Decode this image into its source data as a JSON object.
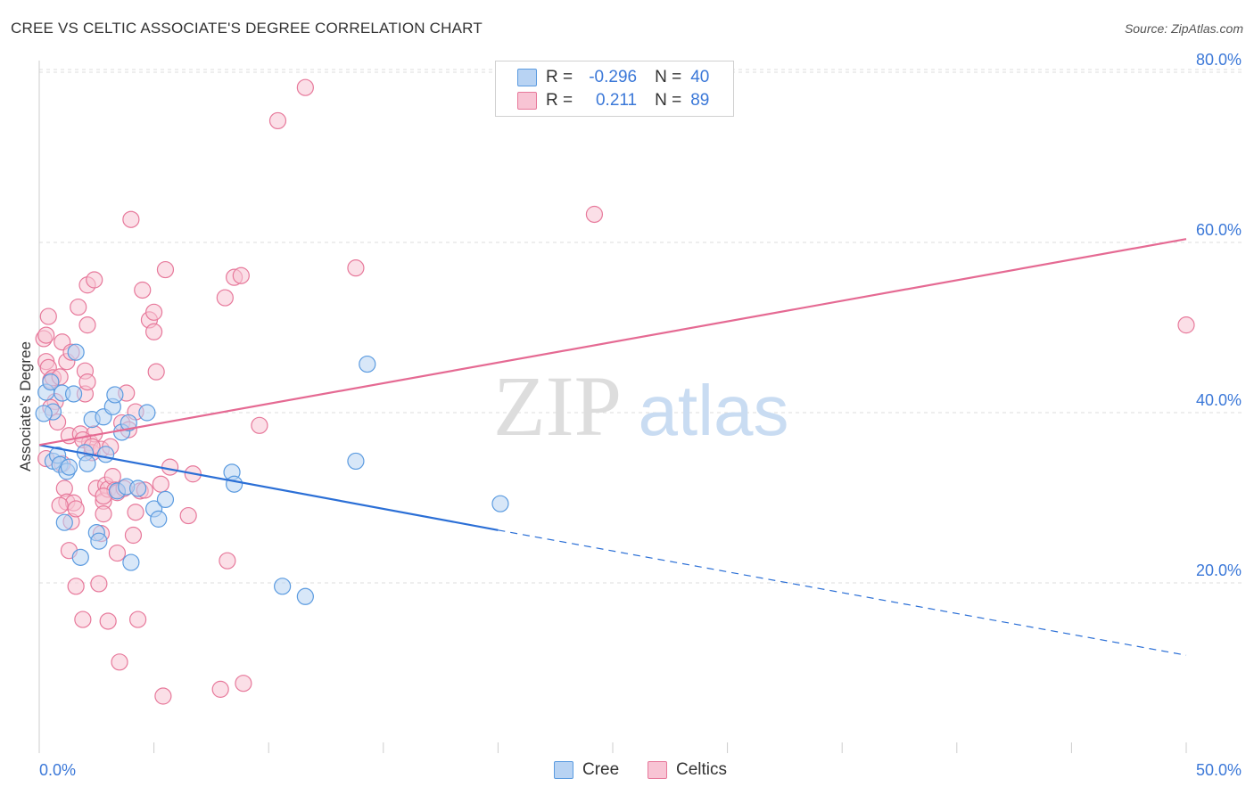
{
  "header": {
    "title": "CREE VS CELTIC ASSOCIATE'S DEGREE CORRELATION CHART",
    "source": "Source: ZipAtlas.com"
  },
  "watermark": {
    "zip": "ZIP",
    "atlas": "atlas"
  },
  "legend": {
    "cree": {
      "r_label": "R =",
      "r_value": "-0.296",
      "n_label": "N =",
      "n_value": "40"
    },
    "celtics": {
      "r_label": "R =",
      "r_value": "0.211",
      "n_label": "N =",
      "n_value": "89"
    }
  },
  "bottom_legend": {
    "cree": "Cree",
    "celtics": "Celtics"
  },
  "chart_data": {
    "type": "scatter",
    "title": "CREE VS CELTIC ASSOCIATE'S DEGREE CORRELATION CHART",
    "xlabel": "",
    "ylabel": "Associate's Degree",
    "xlim": [
      0,
      50
    ],
    "ylim": [
      0,
      82
    ],
    "x_tick_labels": [
      "0.0%",
      "50.0%"
    ],
    "y_ticks": [
      20,
      40,
      60,
      80
    ],
    "y_tick_labels": [
      "20.0%",
      "40.0%",
      "60.0%",
      "80.0%"
    ],
    "grid": true,
    "legend_position": "top-center",
    "colors": {
      "cree": "#5b9be0",
      "cree_fill": "#b8d3f3",
      "cree_line": "#2b6fd6",
      "celtics": "#e7799b",
      "celtics_fill": "#f8c4d4",
      "celtics_line": "#e56a93",
      "axis_label": "#3b78d8"
    },
    "series": [
      {
        "name": "Cree",
        "points": [
          [
            0.3,
            42.4
          ],
          [
            0.5,
            43.6
          ],
          [
            0.6,
            40.1
          ],
          [
            0.6,
            34.3
          ],
          [
            0.8,
            35.0
          ],
          [
            0.9,
            33.9
          ],
          [
            1.0,
            42.3
          ],
          [
            1.1,
            27.1
          ],
          [
            1.2,
            33.1
          ],
          [
            1.3,
            33.6
          ],
          [
            1.5,
            42.2
          ],
          [
            1.6,
            47.1
          ],
          [
            1.8,
            23.0
          ],
          [
            2.0,
            35.3
          ],
          [
            2.1,
            34.0
          ],
          [
            2.3,
            39.2
          ],
          [
            2.5,
            25.9
          ],
          [
            2.6,
            24.9
          ],
          [
            2.8,
            39.5
          ],
          [
            2.9,
            35.1
          ],
          [
            3.2,
            40.7
          ],
          [
            3.3,
            42.1
          ],
          [
            3.4,
            30.8
          ],
          [
            3.6,
            37.7
          ],
          [
            3.8,
            31.3
          ],
          [
            3.9,
            38.8
          ],
          [
            4.0,
            22.4
          ],
          [
            4.3,
            31.1
          ],
          [
            4.7,
            40.0
          ],
          [
            5.0,
            28.7
          ],
          [
            5.2,
            27.5
          ],
          [
            5.5,
            29.8
          ],
          [
            8.4,
            33.0
          ],
          [
            8.5,
            31.6
          ],
          [
            10.6,
            19.6
          ],
          [
            11.6,
            18.4
          ],
          [
            13.8,
            34.3
          ],
          [
            14.3,
            45.7
          ],
          [
            20.1,
            29.3
          ],
          [
            0.2,
            39.9
          ]
        ]
      },
      {
        "name": "Celtics",
        "points": [
          [
            0.2,
            48.7
          ],
          [
            0.3,
            49.1
          ],
          [
            0.3,
            46.0
          ],
          [
            0.4,
            51.3
          ],
          [
            0.4,
            45.3
          ],
          [
            0.5,
            43.8
          ],
          [
            0.6,
            44.1
          ],
          [
            0.7,
            41.3
          ],
          [
            0.8,
            38.9
          ],
          [
            0.9,
            44.2
          ],
          [
            1.0,
            48.3
          ],
          [
            1.0,
            34.0
          ],
          [
            1.1,
            31.1
          ],
          [
            1.2,
            46.0
          ],
          [
            1.2,
            29.5
          ],
          [
            1.3,
            37.3
          ],
          [
            1.3,
            23.8
          ],
          [
            1.4,
            27.2
          ],
          [
            1.5,
            29.4
          ],
          [
            1.6,
            19.6
          ],
          [
            1.6,
            28.7
          ],
          [
            1.7,
            52.4
          ],
          [
            1.8,
            37.5
          ],
          [
            1.9,
            15.7
          ],
          [
            2.0,
            42.2
          ],
          [
            2.0,
            44.9
          ],
          [
            2.1,
            43.6
          ],
          [
            2.1,
            50.3
          ],
          [
            2.1,
            55.0
          ],
          [
            2.2,
            36.5
          ],
          [
            2.3,
            35.3
          ],
          [
            2.4,
            37.5
          ],
          [
            2.4,
            55.6
          ],
          [
            2.5,
            31.1
          ],
          [
            2.6,
            19.9
          ],
          [
            2.7,
            35.7
          ],
          [
            2.7,
            25.8
          ],
          [
            2.8,
            29.6
          ],
          [
            2.8,
            28.1
          ],
          [
            2.9,
            31.5
          ],
          [
            3.0,
            31.0
          ],
          [
            3.0,
            15.5
          ],
          [
            3.1,
            36.0
          ],
          [
            3.2,
            32.5
          ],
          [
            3.3,
            30.9
          ],
          [
            3.4,
            23.5
          ],
          [
            3.4,
            30.6
          ],
          [
            3.5,
            10.7
          ],
          [
            3.6,
            38.8
          ],
          [
            3.7,
            31.1
          ],
          [
            3.8,
            42.3
          ],
          [
            4.0,
            62.7
          ],
          [
            4.1,
            25.6
          ],
          [
            4.2,
            28.3
          ],
          [
            4.2,
            40.1
          ],
          [
            4.3,
            15.7
          ],
          [
            4.4,
            30.8
          ],
          [
            4.5,
            54.4
          ],
          [
            4.6,
            30.9
          ],
          [
            4.8,
            50.9
          ],
          [
            5.0,
            51.8
          ],
          [
            5.0,
            49.5
          ],
          [
            5.1,
            44.8
          ],
          [
            5.3,
            31.6
          ],
          [
            5.4,
            6.7
          ],
          [
            5.5,
            56.8
          ],
          [
            5.7,
            33.6
          ],
          [
            6.5,
            27.9
          ],
          [
            6.7,
            32.8
          ],
          [
            7.9,
            7.5
          ],
          [
            8.1,
            53.5
          ],
          [
            8.2,
            22.6
          ],
          [
            8.5,
            55.9
          ],
          [
            8.8,
            56.1
          ],
          [
            8.9,
            8.2
          ],
          [
            9.6,
            38.5
          ],
          [
            10.4,
            74.3
          ],
          [
            11.6,
            78.2
          ],
          [
            13.8,
            57.0
          ],
          [
            24.2,
            63.3
          ],
          [
            50.0,
            50.3
          ],
          [
            0.5,
            40.6
          ],
          [
            0.9,
            29.1
          ],
          [
            1.4,
            47.1
          ],
          [
            1.9,
            36.8
          ],
          [
            2.3,
            36.0
          ],
          [
            2.8,
            30.2
          ],
          [
            0.3,
            34.6
          ],
          [
            3.9,
            38.0
          ]
        ]
      }
    ],
    "trendlines": [
      {
        "series": "Cree",
        "from": [
          0,
          36.2
        ],
        "to": [
          20,
          26.2
        ],
        "dashed_to": [
          50,
          11.5
        ]
      },
      {
        "series": "Celtics",
        "from": [
          0,
          36.2
        ],
        "to": [
          50,
          60.4
        ]
      }
    ]
  }
}
